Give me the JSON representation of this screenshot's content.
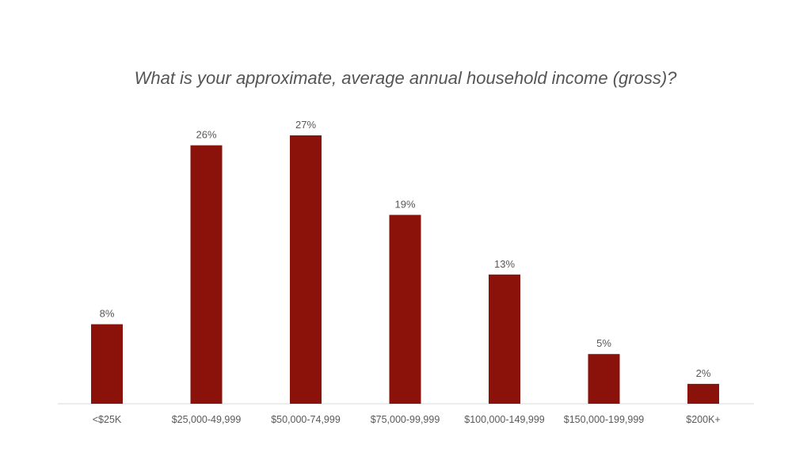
{
  "chart_data": {
    "type": "bar",
    "title": "What is your approximate, average annual household income (gross)?",
    "xlabel": "",
    "ylabel": "",
    "categories": [
      "<$25K",
      "$25,000-49,999",
      "$50,000-74,999",
      "$75,000-99,999",
      "$100,000-149,999",
      "$150,000-199,999",
      "$200K+"
    ],
    "values": [
      8,
      26,
      27,
      19,
      13,
      5,
      2
    ],
    "data_labels": [
      "8%",
      "26%",
      "27%",
      "19%",
      "13%",
      "5%",
      "2%"
    ],
    "ylim": [
      0,
      27
    ],
    "grid": false,
    "legend": "none",
    "bar_color": "#8B120B",
    "axis_color": "#D9D9D9"
  }
}
